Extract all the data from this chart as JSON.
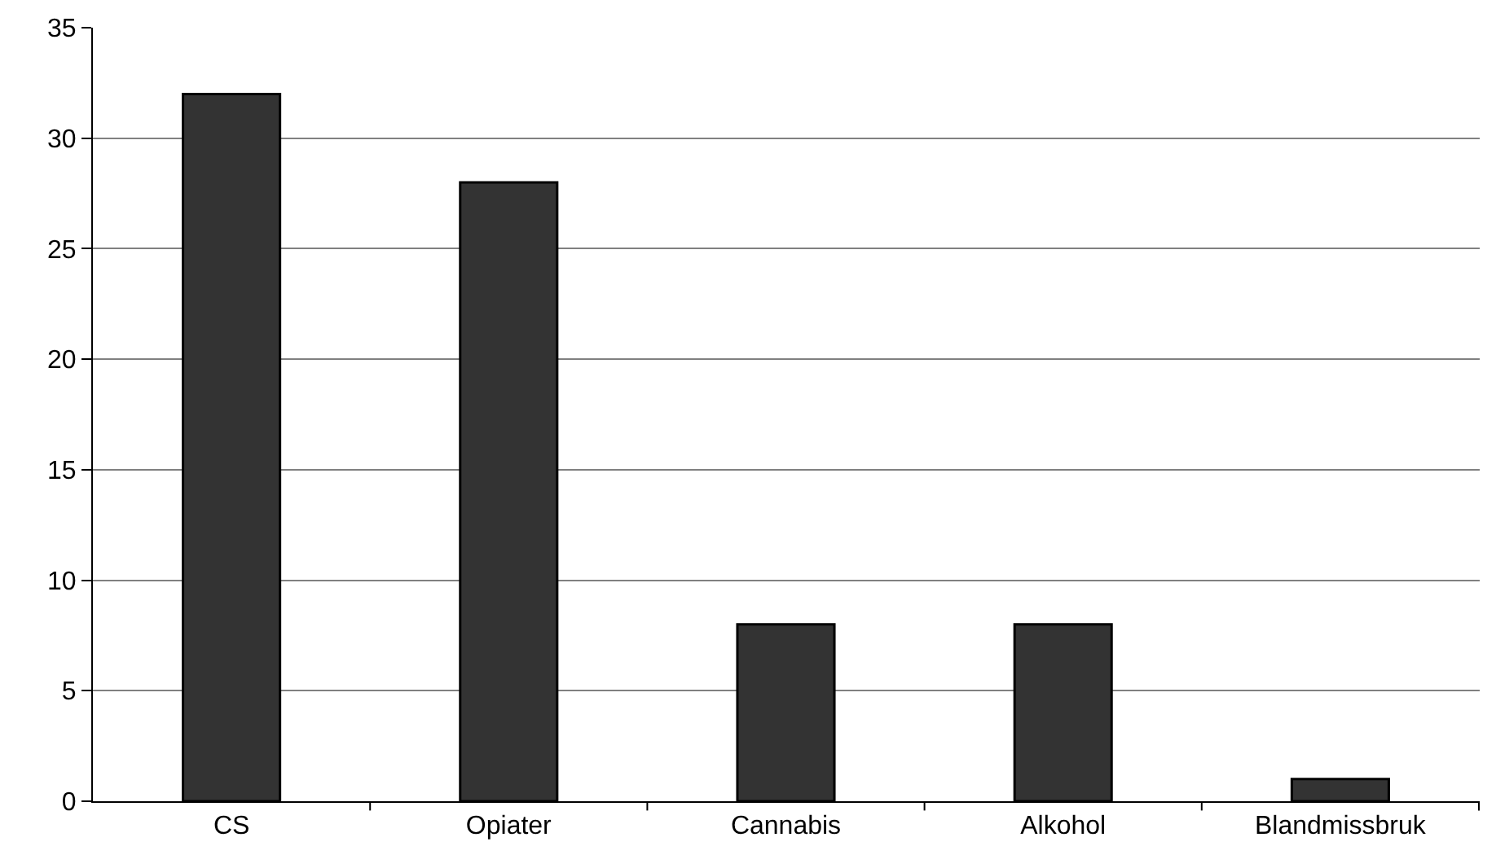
{
  "chart_data": {
    "type": "bar",
    "categories": [
      "CS",
      "Opiater",
      "Cannabis",
      "Alkohol",
      "Blandmissbruk"
    ],
    "values": [
      32,
      28,
      8,
      8,
      1
    ],
    "color": "#333333",
    "ylim": [
      0,
      35
    ],
    "yticks": [
      0,
      5,
      10,
      15,
      20,
      25,
      30,
      35
    ],
    "grid": "y",
    "legend": false
  }
}
